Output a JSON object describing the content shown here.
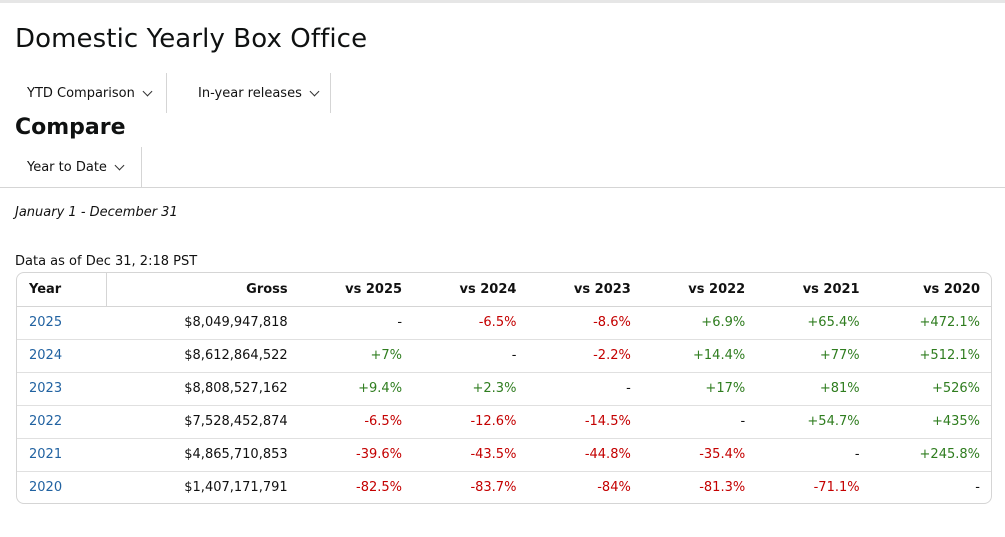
{
  "page_title": "Domestic Yearly Box Office",
  "filters": {
    "comparison": "YTD Comparison",
    "releases": "In-year releases"
  },
  "compare": {
    "title": "Compare",
    "period": "Year to Date"
  },
  "date_range": "January 1 - December 31",
  "data_as_of": "Data as of Dec 31, 2:18 PST",
  "colors": {
    "positive": "#2f7d1f",
    "negative": "#c40000",
    "link": "#2162a1"
  },
  "table": {
    "headers": [
      "Year",
      "Gross",
      "vs 2025",
      "vs 2024",
      "vs 2023",
      "vs 2022",
      "vs 2021",
      "vs 2020"
    ],
    "rows": [
      {
        "year": "2025",
        "gross": "$8,049,947,818",
        "vs": [
          "-",
          "-6.5%",
          "-8.6%",
          "+6.9%",
          "+65.4%",
          "+472.1%"
        ]
      },
      {
        "year": "2024",
        "gross": "$8,612,864,522",
        "vs": [
          "+7%",
          "-",
          "-2.2%",
          "+14.4%",
          "+77%",
          "+512.1%"
        ]
      },
      {
        "year": "2023",
        "gross": "$8,808,527,162",
        "vs": [
          "+9.4%",
          "+2.3%",
          "-",
          "+17%",
          "+81%",
          "+526%"
        ]
      },
      {
        "year": "2022",
        "gross": "$7,528,452,874",
        "vs": [
          "-6.5%",
          "-12.6%",
          "-14.5%",
          "-",
          "+54.7%",
          "+435%"
        ]
      },
      {
        "year": "2021",
        "gross": "$4,865,710,853",
        "vs": [
          "-39.6%",
          "-43.5%",
          "-44.8%",
          "-35.4%",
          "-",
          "+245.8%"
        ]
      },
      {
        "year": "2020",
        "gross": "$1,407,171,791",
        "vs": [
          "-82.5%",
          "-83.7%",
          "-84%",
          "-81.3%",
          "-71.1%",
          "-"
        ]
      }
    ]
  }
}
